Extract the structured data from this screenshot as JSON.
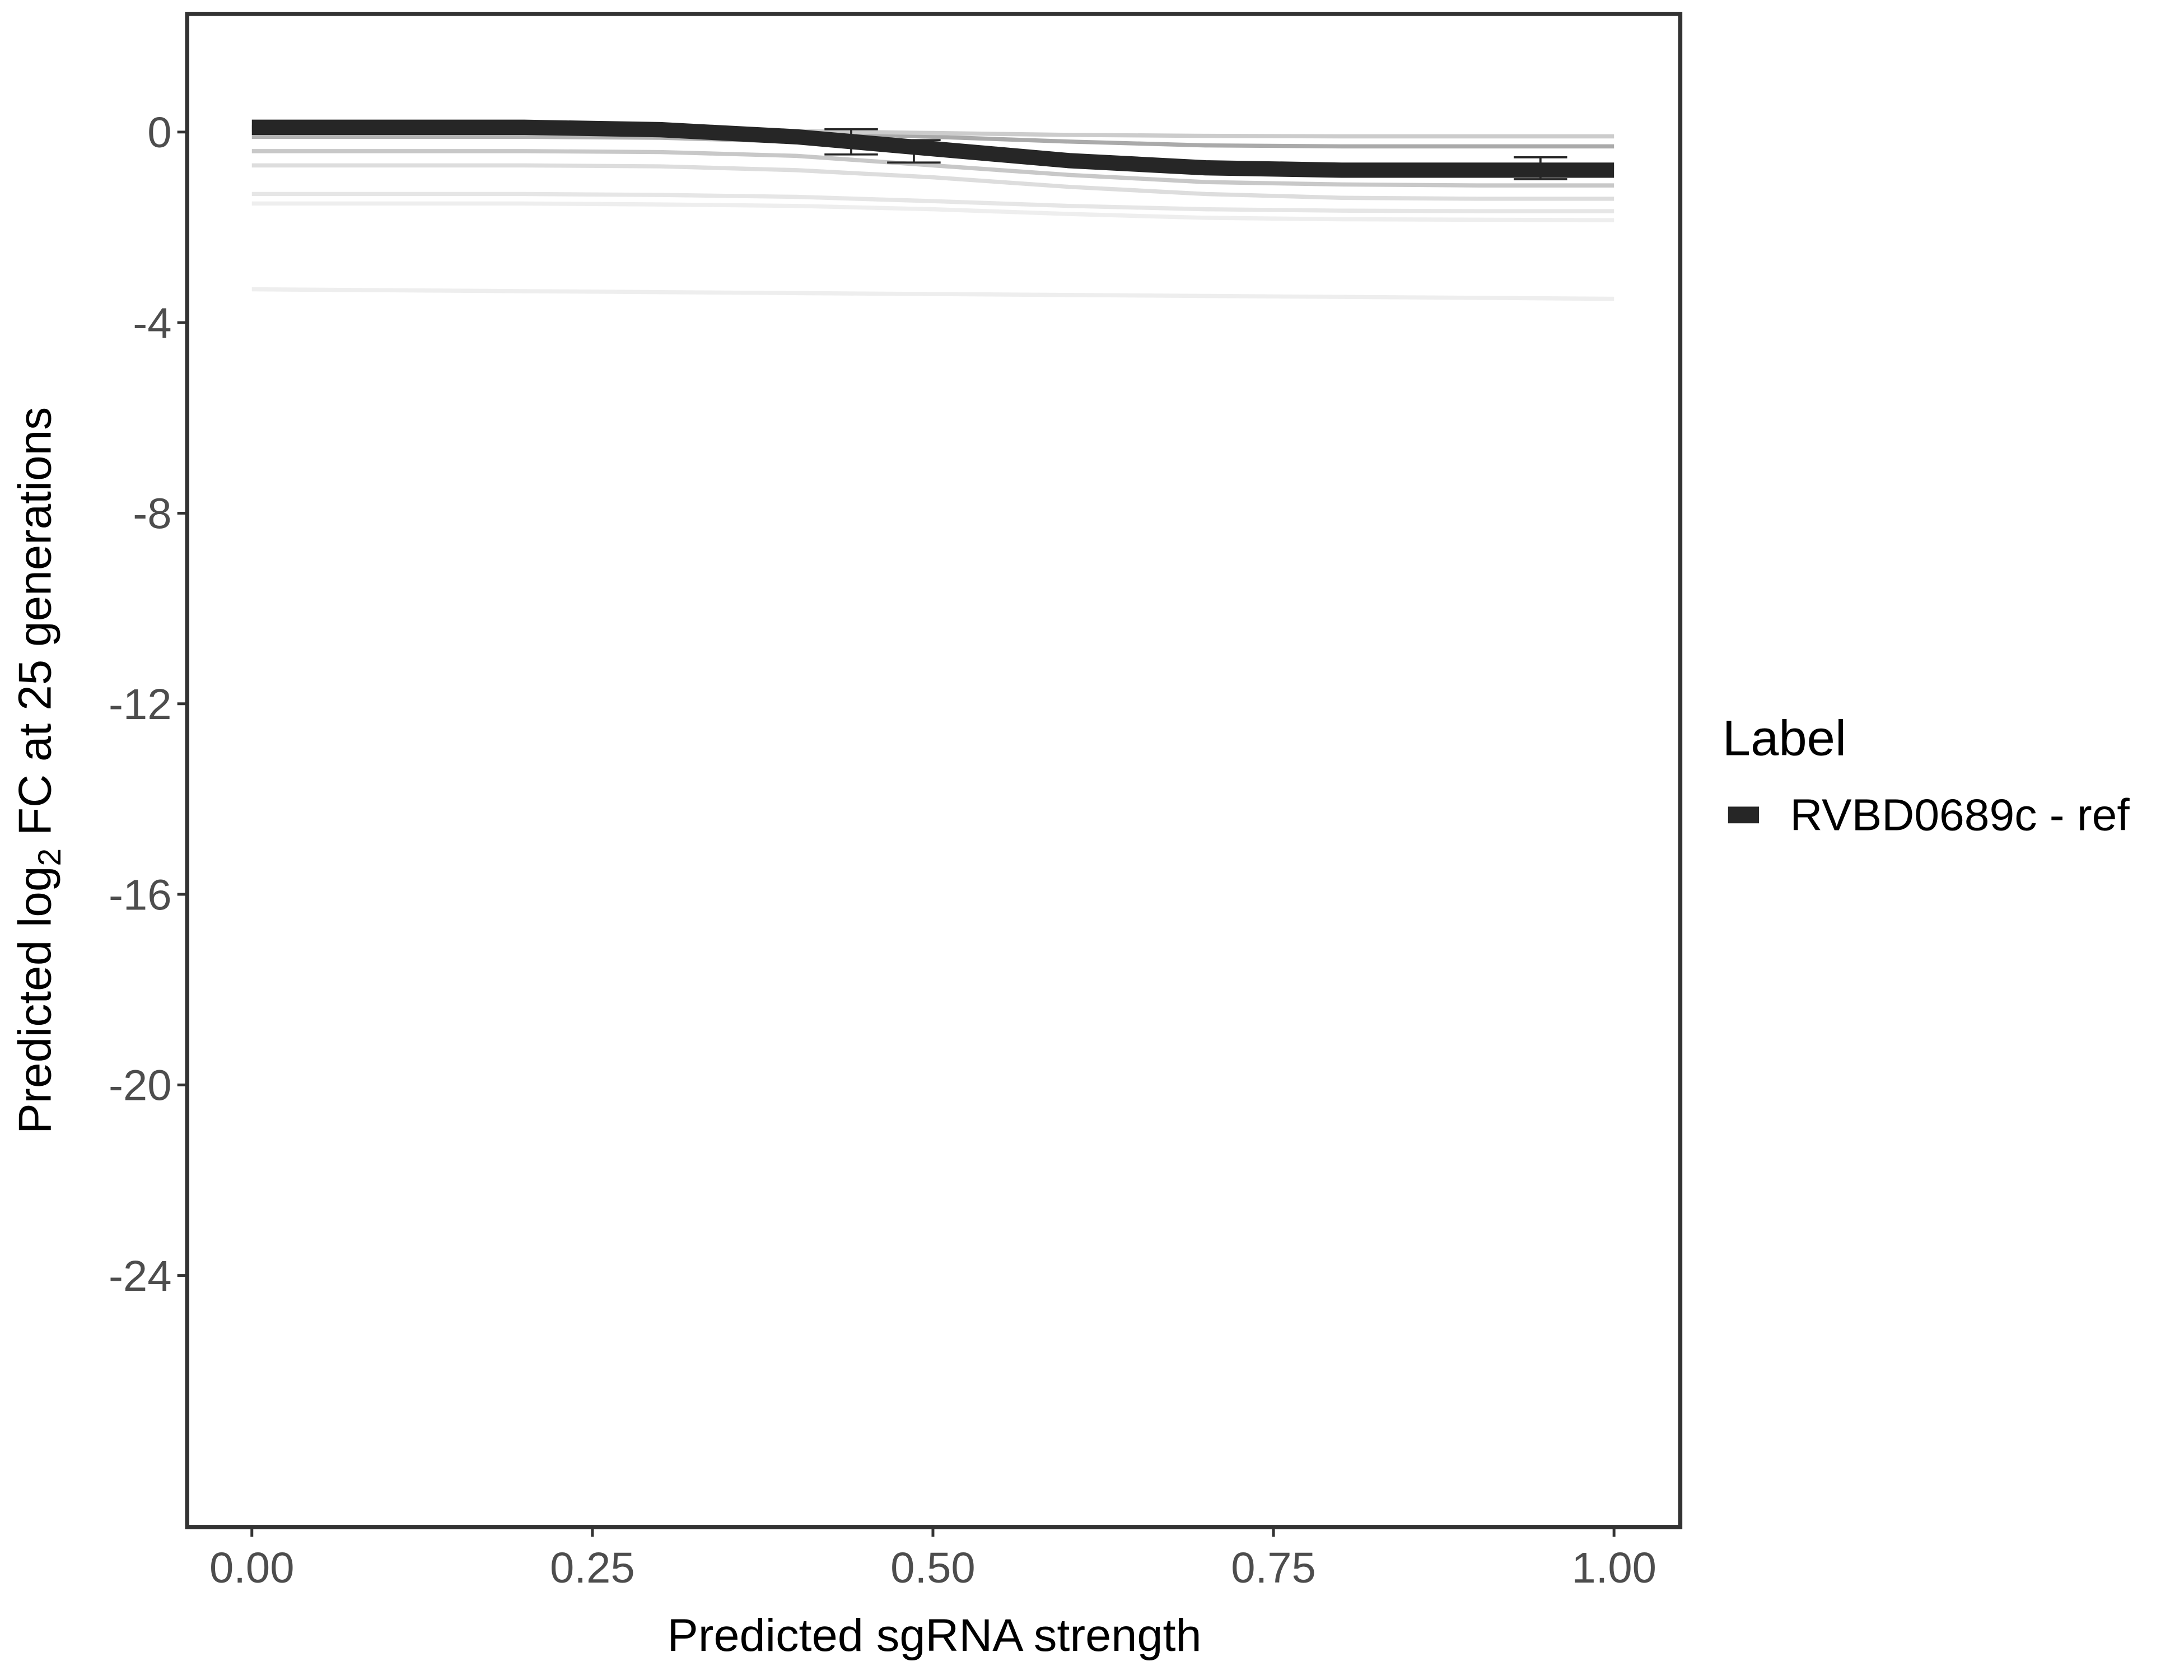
{
  "chart_data": {
    "type": "line",
    "xlabel": "Predicted sgRNA strength",
    "ylabel_parts": [
      "Predicted  log",
      "2",
      " FC at 25 generations"
    ],
    "legend_title": "Label",
    "legend_position": "right",
    "xlim": [
      -0.0475,
      1.0486
    ],
    "ylim": [
      -29.28,
      2.48
    ],
    "xticks": [
      {
        "value": 0,
        "label": "0.00"
      },
      {
        "value": 0.25,
        "label": "0.25"
      },
      {
        "value": 0.5,
        "label": "0.50"
      },
      {
        "value": 0.75,
        "label": "0.75"
      },
      {
        "value": 1,
        "label": "1.00"
      }
    ],
    "yticks": [
      0,
      -4,
      -8,
      -12,
      -16,
      -20,
      -24
    ],
    "x": [
      0,
      0.1,
      0.2,
      0.3,
      0.4,
      0.5,
      0.6,
      0.7,
      0.8,
      0.9,
      1
    ],
    "background_lines": [
      {
        "color": "#eeeeee",
        "values": [
          -3.3,
          -3.32,
          -3.34,
          -3.36,
          -3.38,
          -3.4,
          -3.42,
          -3.44,
          -3.46,
          -3.48,
          -3.5
        ]
      },
      {
        "color": "#eeeeee",
        "values": [
          -1.5,
          -1.5,
          -1.5,
          -1.52,
          -1.55,
          -1.62,
          -1.72,
          -1.8,
          -1.83,
          -1.84,
          -1.85
        ]
      },
      {
        "color": "#e6e6e6",
        "values": [
          -1.3,
          -1.3,
          -1.3,
          -1.32,
          -1.36,
          -1.45,
          -1.55,
          -1.62,
          -1.65,
          -1.66,
          -1.66
        ]
      },
      {
        "color": "#dddddd",
        "values": [
          -0.7,
          -0.7,
          -0.7,
          -0.72,
          -0.8,
          -0.95,
          -1.15,
          -1.3,
          -1.38,
          -1.4,
          -1.4
        ]
      },
      {
        "color": "#c8c8c8",
        "values": [
          -0.4,
          -0.4,
          -0.4,
          -0.42,
          -0.5,
          -0.7,
          -0.9,
          -1.05,
          -1.1,
          -1.12,
          -1.12
        ]
      },
      {
        "color": "#b4b4b4",
        "values": [
          -0.1,
          -0.1,
          -0.1,
          -0.12,
          -0.2,
          -0.35,
          -0.55,
          -0.68,
          -0.72,
          -0.74,
          -0.74
        ]
      },
      {
        "color": "#aaaaaa",
        "values": [
          0.1,
          0.1,
          0.1,
          0.08,
          0,
          -0.1,
          -0.2,
          -0.28,
          -0.3,
          -0.3,
          -0.3
        ]
      },
      {
        "color": "#cccccc",
        "values": [
          0.05,
          0.05,
          0.05,
          0.05,
          0.02,
          -0.02,
          -0.06,
          -0.08,
          -0.09,
          -0.09,
          -0.09
        ]
      }
    ],
    "series": [
      {
        "name": "RVBD0689c - ref",
        "color": "#262626",
        "values": [
          0.1,
          0.1,
          0.1,
          0.05,
          -0.1,
          -0.35,
          -0.6,
          -0.75,
          -0.8,
          -0.8,
          -0.8
        ]
      }
    ],
    "errorbars": [
      {
        "x": 0.44,
        "low": -0.47,
        "high": 0.06
      },
      {
        "x": 0.486,
        "low": -0.64,
        "high": -0.17
      },
      {
        "x": 0.946,
        "low": -0.99,
        "high": -0.53
      }
    ]
  }
}
